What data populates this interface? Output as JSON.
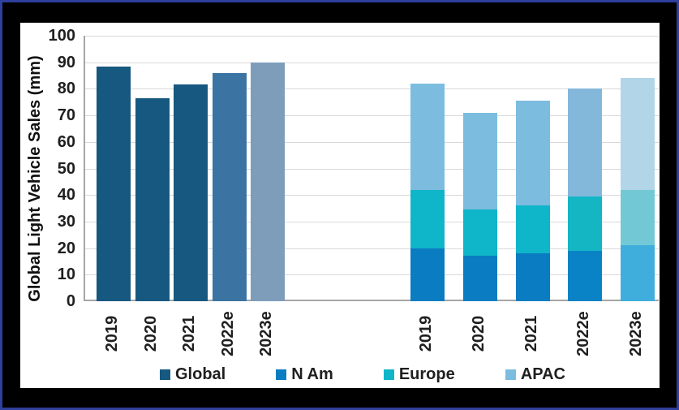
{
  "window": {
    "background_color": "#000000",
    "border_color": "#2e3f9e",
    "panel_color": "#ffffff"
  },
  "chart_data": {
    "type": "bar",
    "title": "",
    "ylabel": "Global Light Vehicle Sales (mm)",
    "xlabel": "",
    "ylim": [
      0,
      100
    ],
    "yticks": [
      0,
      10,
      20,
      30,
      40,
      50,
      60,
      70,
      80,
      90,
      100
    ],
    "grid": true,
    "legend_position": "bottom",
    "groups": [
      {
        "name": "global-total-bars",
        "type": "bar",
        "categories": [
          "2019",
          "2020",
          "2021",
          "2022e",
          "2023e"
        ],
        "series": [
          {
            "name": "Global",
            "values": [
              88.5,
              76.5,
              81.5,
              86,
              90
            ],
            "colors": [
              "#16587F",
              "#16587F",
              "#16587F",
              "#3B74A3",
              "#7E9DBB"
            ]
          }
        ]
      },
      {
        "name": "regional-stacked-bars",
        "type": "stacked-bar",
        "categories": [
          "2019",
          "2020",
          "2021",
          "2022e",
          "2023e"
        ],
        "series": [
          {
            "name": "N Am",
            "values": [
              20,
              17,
              18,
              19,
              21
            ],
            "colors": [
              "#0A7CC2",
              "#0A7CC2",
              "#0A7CC2",
              "#0A83C6",
              "#3FAEDC"
            ]
          },
          {
            "name": "Europe",
            "values": [
              22,
              17.5,
              18,
              20.5,
              21
            ],
            "colors": [
              "#0FB5C8",
              "#0FB5C8",
              "#0FB5C8",
              "#14B6C4",
              "#72C9D5"
            ]
          },
          {
            "name": "APAC",
            "values": [
              40,
              36.5,
              39.5,
              40.5,
              42
            ],
            "colors": [
              "#7CBCDF",
              "#7CBCDF",
              "#7CBCDF",
              "#84B8DB",
              "#B2D5E8"
            ]
          }
        ]
      }
    ],
    "legend": [
      {
        "label": "Global",
        "color": "#16587F"
      },
      {
        "label": "N Am",
        "color": "#0A7CC2"
      },
      {
        "label": "Europe",
        "color": "#0FB5C8"
      },
      {
        "label": "APAC",
        "color": "#7CBCDF"
      }
    ]
  }
}
